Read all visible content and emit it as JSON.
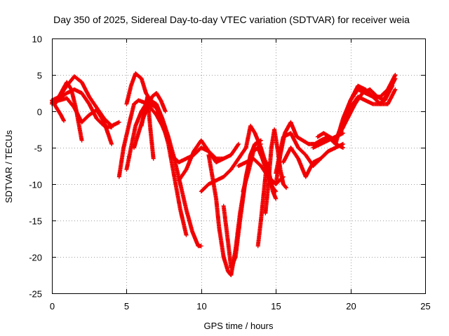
{
  "chart_data": {
    "type": "scatter",
    "title": "Day 350 of 2025, Sidereal Day-to-day VTEC variation (SDTVAR) for receiver weia",
    "xlabel": "GPS time / hours",
    "ylabel": "SDTVAR / TECUs",
    "xlim": [
      0,
      25
    ],
    "ylim": [
      -25,
      10
    ],
    "xticks": [
      0,
      5,
      10,
      15,
      20,
      25
    ],
    "yticks": [
      -25,
      -20,
      -15,
      -10,
      -5,
      0,
      5,
      10
    ],
    "grid": true,
    "legend": "none",
    "marker": "plus",
    "color": "#f00000",
    "series": [
      {
        "x": [
          0.0,
          0.3,
          0.6,
          0.8
        ],
        "y": [
          1.5,
          0.5,
          -0.5,
          -1.3
        ]
      },
      {
        "x": [
          0.0,
          0.5,
          1.0,
          1.5,
          2.0,
          2.5,
          3.0,
          3.5,
          4.0
        ],
        "y": [
          1.0,
          1.8,
          2.5,
          3.0,
          2.5,
          1.0,
          -1.0,
          -2.0,
          -2.2
        ]
      },
      {
        "x": [
          0.0,
          0.5,
          1.0,
          1.5,
          2.0,
          2.5,
          3.0,
          3.5,
          4.0,
          4.5
        ],
        "y": [
          1.5,
          2.0,
          3.5,
          4.8,
          4.0,
          2.0,
          0.5,
          -1.0,
          -2.0,
          -1.5
        ]
      },
      {
        "x": [
          0.2,
          0.6,
          1.0,
          1.3,
          1.6,
          2.0
        ],
        "y": [
          1.0,
          2.5,
          4.0,
          3.0,
          0.5,
          -4.0
        ]
      },
      {
        "x": [
          0.0,
          0.5,
          1.0,
          1.5,
          2.0,
          2.5,
          3.0,
          3.5,
          4.0
        ],
        "y": [
          1.2,
          1.5,
          1.8,
          0.5,
          -1.5,
          -0.5,
          0.2,
          -1.5,
          -4.5
        ]
      },
      {
        "x": [
          4.5,
          4.8,
          5.2,
          5.5,
          5.8,
          6.2,
          6.6,
          7.0,
          7.4,
          7.8,
          8.2,
          8.6,
          9.0
        ],
        "y": [
          -9.0,
          -5.0,
          -1.5,
          1.0,
          1.5,
          1.2,
          1.0,
          0.5,
          -1.5,
          -4.5,
          -9.0,
          -13.5,
          -17.0
        ]
      },
      {
        "x": [
          5.0,
          5.3,
          5.6,
          6.0,
          6.3,
          6.6,
          7.0,
          7.4,
          7.8,
          8.2,
          8.6,
          9.0,
          9.4,
          9.8,
          10.0
        ],
        "y": [
          1.0,
          3.5,
          5.2,
          4.5,
          2.5,
          1.5,
          1.0,
          -1.0,
          -3.5,
          -6.5,
          -10.0,
          -13.5,
          -16.5,
          -18.5,
          -18.5
        ]
      },
      {
        "x": [
          5.0,
          5.3,
          5.6,
          6.0,
          6.3,
          6.6,
          7.0,
          7.4,
          7.8
        ],
        "y": [
          -8.0,
          -5.0,
          -2.0,
          0.0,
          1.0,
          0.5,
          -0.5,
          -2.0,
          -4.0
        ]
      },
      {
        "x": [
          5.5,
          5.8,
          6.1,
          6.4,
          6.7,
          7.0,
          7.3,
          7.6
        ],
        "y": [
          -5.0,
          -3.0,
          -1.0,
          0.5,
          2.0,
          2.5,
          1.5,
          0.0
        ]
      },
      {
        "x": [
          6.0,
          6.2,
          6.4,
          6.6,
          6.8
        ],
        "y": [
          -2.0,
          0.0,
          2.0,
          -2.5,
          -6.5
        ]
      },
      {
        "x": [
          8.5,
          9.0,
          9.5,
          10.0,
          10.5,
          11.0,
          11.5,
          12.0,
          12.5
        ],
        "y": [
          -9.5,
          -8.0,
          -5.5,
          -4.0,
          -5.5,
          -6.5,
          -6.5,
          -6.0,
          -4.5
        ]
      },
      {
        "x": [
          8.0,
          8.5,
          9.0,
          9.5,
          10.0,
          10.5,
          11.0,
          11.5
        ],
        "y": [
          -6.0,
          -7.0,
          -6.5,
          -6.0,
          -5.0,
          -5.5,
          -7.0,
          -6.5
        ]
      },
      {
        "x": [
          10.0,
          10.5,
          11.0,
          11.5,
          12.0,
          12.5,
          13.0
        ],
        "y": [
          -11.0,
          -10.0,
          -9.5,
          -9.0,
          -8.0,
          -6.5,
          -5.0
        ]
      },
      {
        "x": [
          10.5,
          11.0,
          11.2,
          11.5,
          11.8,
          12.0,
          12.3,
          12.6,
          13.0,
          13.3,
          13.6,
          14.0
        ],
        "y": [
          -6.0,
          -12.0,
          -16.0,
          -20.0,
          -22.0,
          -22.5,
          -19.0,
          -14.0,
          -9.0,
          -6.0,
          -4.5,
          -4.5
        ]
      },
      {
        "x": [
          11.5,
          11.8,
          12.0,
          12.3,
          12.6,
          13.0,
          13.3,
          13.6,
          14.0
        ],
        "y": [
          -13.0,
          -18.0,
          -21.5,
          -20.0,
          -15.0,
          -9.0,
          -6.0,
          -4.5,
          -4.0
        ]
      },
      {
        "x": [
          12.8,
          13.2,
          13.5,
          13.8,
          14.1,
          14.5,
          14.8,
          15.0
        ],
        "y": [
          -11.0,
          -8.0,
          -5.5,
          -5.0,
          -6.5,
          -9.0,
          -10.5,
          -11.0
        ]
      },
      {
        "x": [
          12.5,
          13.0,
          13.5,
          14.0,
          14.5,
          15.0,
          15.5
        ],
        "y": [
          -7.5,
          -7.0,
          -6.5,
          -7.5,
          -9.0,
          -10.0,
          -9.0
        ]
      },
      {
        "x": [
          13.0,
          13.3,
          13.6,
          14.0,
          14.3,
          14.6
        ],
        "y": [
          -5.0,
          -2.0,
          -3.0,
          -5.0,
          -7.0,
          -9.0
        ]
      },
      {
        "x": [
          13.8,
          14.0,
          14.2,
          14.4,
          14.6,
          14.8,
          15.0
        ],
        "y": [
          -18.5,
          -15.0,
          -11.0,
          -7.0,
          -9.0,
          -11.0,
          -12.0
        ]
      },
      {
        "x": [
          14.3,
          14.5,
          14.7,
          14.9,
          15.1,
          15.3,
          15.5,
          15.7
        ],
        "y": [
          -14.0,
          -10.0,
          -5.0,
          -2.5,
          -5.0,
          -8.0,
          -10.0,
          -10.5
        ]
      },
      {
        "x": [
          15.0,
          15.5,
          16.0,
          16.5,
          17.0,
          17.5,
          18.0,
          18.5
        ],
        "y": [
          -8.5,
          -3.5,
          -3.0,
          -5.0,
          -6.0,
          -7.5,
          -6.5,
          -5.5
        ]
      },
      {
        "x": [
          15.0,
          15.3,
          15.6,
          16.0,
          16.4,
          16.8,
          17.2,
          17.6,
          18.0,
          18.5,
          19.0,
          19.5
        ],
        "y": [
          -10.0,
          -6.0,
          -3.0,
          -1.5,
          -3.5,
          -4.0,
          -4.5,
          -4.5,
          -4.0,
          -3.5,
          -4.5,
          -5.0
        ]
      },
      {
        "x": [
          15.5,
          16.0,
          16.5,
          17.0,
          17.5,
          18.0,
          18.5,
          19.0,
          19.5
        ],
        "y": [
          -7.0,
          -5.0,
          -6.5,
          -9.0,
          -7.0,
          -6.5,
          -5.5,
          -5.0,
          -4.5
        ]
      },
      {
        "x": [
          17.5,
          18.0,
          18.5,
          19.0,
          19.5
        ],
        "y": [
          -5.0,
          -4.5,
          -4.0,
          -3.5,
          -3.0
        ]
      },
      {
        "x": [
          17.8,
          18.2,
          18.6,
          19.0
        ],
        "y": [
          -3.5,
          -3.0,
          -3.5,
          -4.0
        ]
      },
      {
        "x": [
          19.0,
          19.5,
          20.0,
          20.5,
          21.0,
          21.5,
          22.0,
          22.5,
          23.0
        ],
        "y": [
          -4.5,
          -1.0,
          1.5,
          3.0,
          2.5,
          2.0,
          1.0,
          2.5,
          4.5
        ]
      },
      {
        "x": [
          19.3,
          19.8,
          20.3,
          20.8,
          21.3,
          21.8,
          22.3,
          22.8
        ],
        "y": [
          -3.0,
          -1.0,
          1.0,
          2.5,
          3.0,
          2.0,
          1.5,
          3.5
        ]
      },
      {
        "x": [
          19.0,
          19.5,
          20.0,
          20.5,
          21.0,
          21.5,
          22.0,
          22.5,
          23.0
        ],
        "y": [
          -4.0,
          -1.5,
          1.5,
          3.5,
          3.0,
          2.0,
          2.0,
          3.0,
          5.0
        ]
      },
      {
        "x": [
          19.5,
          20.0,
          20.5,
          21.0,
          21.5,
          22.0,
          22.5,
          23.0
        ],
        "y": [
          -2.0,
          0.5,
          2.0,
          1.5,
          1.0,
          1.0,
          1.0,
          3.0
        ]
      }
    ]
  }
}
